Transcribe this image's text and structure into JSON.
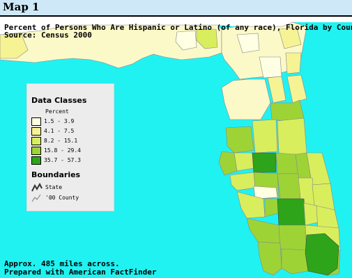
{
  "header": {
    "title": "Map 1"
  },
  "map": {
    "title_line1": "Percent of Persons Who Are Hispanic or Latino (of any race), Florida by County",
    "title_line2": "Source: Census 2000",
    "footer_line1": "Approx. 485 miles across.",
    "footer_line2": "Prepared with American FactFinder",
    "colors": {
      "ocean": "#20f2f2",
      "land_outside": "#ffffff",
      "class1": "#ffffe3",
      "class2": "#f6f394",
      "class3": "#d9ee5c",
      "class4": "#9ed336",
      "class5": "#2ea41a"
    }
  },
  "legend": {
    "title": "Data Classes",
    "subtitle": "Percent",
    "classes": [
      {
        "label": "1.5 - 3.9",
        "color": "#ffffe3"
      },
      {
        "label": "4.1 - 7.5",
        "color": "#f6f394"
      },
      {
        "label": "8.2 - 15.1",
        "color": "#d9ee5c"
      },
      {
        "label": "15.8 - 29.4",
        "color": "#9ed336"
      },
      {
        "label": "35.7 - 57.3",
        "color": "#2ea41a"
      }
    ],
    "boundaries_title": "Boundaries",
    "boundaries": [
      {
        "label": "State",
        "icon": "state-boundary-icon"
      },
      {
        "label": "'00 County",
        "icon": "county-boundary-icon"
      }
    ]
  }
}
